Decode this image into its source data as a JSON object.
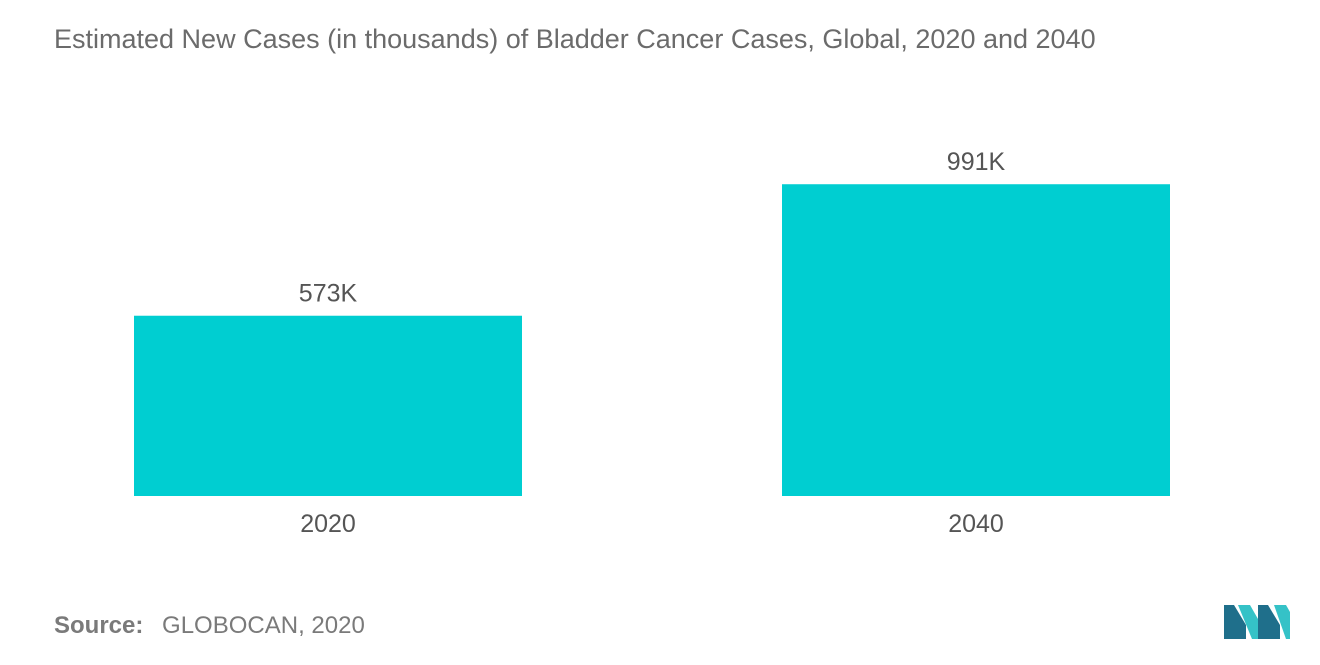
{
  "chart_data": {
    "type": "bar",
    "title": "Estimated New Cases (in thousands) of Bladder Cancer Cases, Global, 2020 and 2040",
    "categories": [
      "2020",
      "2040"
    ],
    "values": [
      573,
      991
    ],
    "data_labels": [
      "573K",
      "991K"
    ],
    "xlabel": "",
    "ylabel": "",
    "ylim": [
      0,
      1000
    ],
    "grid": false,
    "legend": "none",
    "bar_color": "#00ced1"
  },
  "source": {
    "label": "Source:",
    "text": "GLOBOCAN, 2020"
  },
  "colors": {
    "bar": "#00ced1",
    "text": "#6b6b6b",
    "logo_dark": "#1f6f8b",
    "logo_light": "#35c2c7"
  },
  "logo": {
    "icon": "mordor-intelligence-logo"
  }
}
